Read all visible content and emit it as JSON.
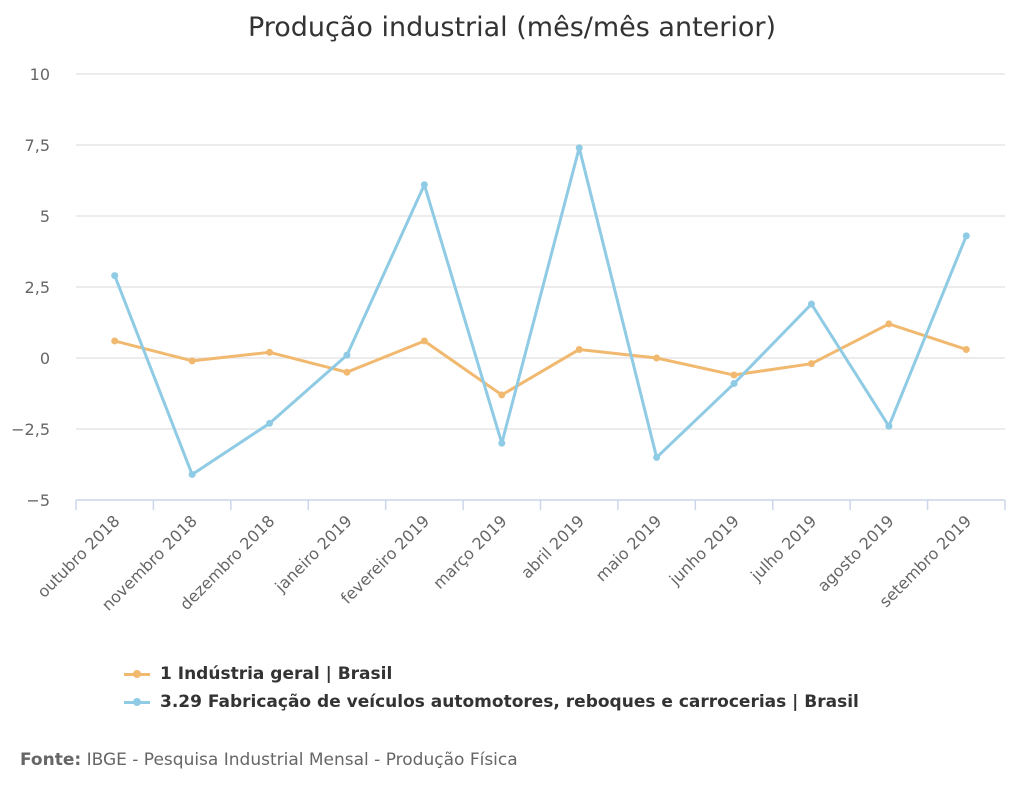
{
  "chart_data": {
    "type": "line",
    "title": "Produção industrial (mês/mês anterior)",
    "categories": [
      "outubro 2018",
      "novembro 2018",
      "dezembro 2018",
      "janeiro 2019",
      "fevereiro 2019",
      "março 2019",
      "abril 2019",
      "maio 2019",
      "junho 2019",
      "julho 2019",
      "agosto 2019",
      "setembro 2019"
    ],
    "ylim": [
      -5,
      10
    ],
    "yticks": [
      10,
      7.5,
      5,
      2.5,
      0,
      -2.5,
      -5
    ],
    "ytick_labels": [
      "10",
      "7,5",
      "5",
      "2,5",
      "0",
      "−2,5",
      "−5"
    ],
    "grid": true,
    "legend_position": "bottom-left",
    "series": [
      {
        "name": "1 Indústria geral | Brasil",
        "color": "#f1b96f",
        "values": [
          0.6,
          -0.1,
          0.2,
          -0.5,
          0.6,
          -1.3,
          0.3,
          0.0,
          -0.6,
          -0.2,
          1.2,
          0.3
        ]
      },
      {
        "name": "3.29 Fabricação de veículos automotores, reboques e carrocerias | Brasil",
        "color": "#8fcbe4",
        "values": [
          2.9,
          -4.1,
          -2.3,
          0.1,
          6.1,
          -3.0,
          7.4,
          -3.5,
          -0.9,
          1.9,
          -2.4,
          4.3
        ]
      }
    ]
  },
  "source": {
    "label": "Fonte:",
    "text": "IBGE - Pesquisa Industrial Mensal - Produção Física"
  }
}
